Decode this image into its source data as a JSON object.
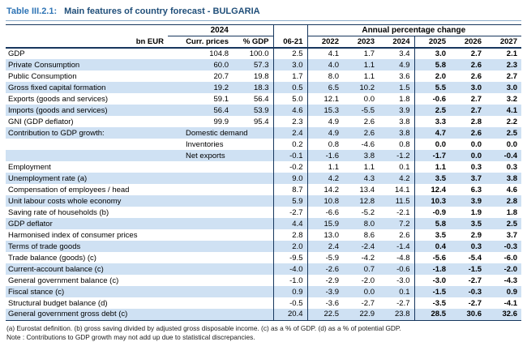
{
  "title": {
    "ref": "Table III.2.1:",
    "text": "Main features of country forecast - BULGARIA"
  },
  "table": {
    "group_headers": {
      "y2024": "2024",
      "annual_change": "Annual percentage change"
    },
    "column_headers": {
      "bn_eur": "bn EUR",
      "curr_prices": "Curr. prices",
      "pct_gdp": "% GDP",
      "avg": "06-21",
      "years": [
        "2022",
        "2023",
        "2024",
        "2025",
        "2026",
        "2027"
      ]
    },
    "rows": [
      {
        "label": "GDP",
        "curr": "104.8",
        "gdp": "100.0",
        "values": [
          "2.5",
          "4.1",
          "1.7",
          "3.4",
          "3.0",
          "2.7",
          "2.1"
        ]
      },
      {
        "label": "Private Consumption",
        "curr": "60.0",
        "gdp": "57.3",
        "values": [
          "3.0",
          "4.0",
          "1.1",
          "4.9",
          "5.8",
          "2.6",
          "2.3"
        ]
      },
      {
        "label": "Public Consumption",
        "curr": "20.7",
        "gdp": "19.8",
        "values": [
          "1.7",
          "8.0",
          "1.1",
          "3.6",
          "2.0",
          "2.6",
          "2.7"
        ]
      },
      {
        "label": "Gross fixed capital formation",
        "curr": "19.2",
        "gdp": "18.3",
        "values": [
          "0.5",
          "6.5",
          "10.2",
          "1.5",
          "5.5",
          "3.0",
          "3.0"
        ]
      },
      {
        "label": "Exports (goods and services)",
        "curr": "59.1",
        "gdp": "56.4",
        "values": [
          "5.0",
          "12.1",
          "0.0",
          "1.8",
          "-0.6",
          "2.7",
          "3.2"
        ]
      },
      {
        "label": "Imports (goods and services)",
        "curr": "56.4",
        "gdp": "53.9",
        "values": [
          "4.6",
          "15.3",
          "-5.5",
          "3.9",
          "2.5",
          "2.7",
          "4.1"
        ]
      },
      {
        "label": "GNI (GDP deflator)",
        "curr": "99.9",
        "gdp": "95.4",
        "values": [
          "2.3",
          "4.9",
          "2.6",
          "3.8",
          "3.3",
          "2.8",
          "2.2"
        ]
      },
      {
        "label": "Contribution to GDP growth:",
        "sub": "Domestic demand",
        "values": [
          "2.4",
          "4.9",
          "2.6",
          "3.8",
          "4.7",
          "2.6",
          "2.5"
        ]
      },
      {
        "label": "",
        "sub": "Inventories",
        "values": [
          "0.2",
          "0.8",
          "-4.6",
          "0.8",
          "0.0",
          "0.0",
          "0.0"
        ]
      },
      {
        "label": "",
        "sub": "Net exports",
        "values": [
          "-0.1",
          "-1.6",
          "3.8",
          "-1.2",
          "-1.7",
          "0.0",
          "-0.4"
        ]
      },
      {
        "label": "Employment",
        "values": [
          "-0.2",
          "1.1",
          "1.1",
          "0.1",
          "1.1",
          "0.3",
          "0.3"
        ]
      },
      {
        "label": "Unemployment rate (a)",
        "values": [
          "9.0",
          "4.2",
          "4.3",
          "4.2",
          "3.5",
          "3.7",
          "3.8"
        ]
      },
      {
        "label": "Compensation of employees / head",
        "values": [
          "8.7",
          "14.2",
          "13.4",
          "14.1",
          "12.4",
          "6.3",
          "4.6"
        ]
      },
      {
        "label": "Unit labour costs whole economy",
        "values": [
          "5.9",
          "10.8",
          "12.8",
          "11.5",
          "10.3",
          "3.9",
          "2.8"
        ]
      },
      {
        "label": "Saving rate of households (b)",
        "values": [
          "-2.7",
          "-6.6",
          "-5.2",
          "-2.1",
          "-0.9",
          "1.9",
          "1.8"
        ]
      },
      {
        "label": "GDP deflator",
        "values": [
          "4.4",
          "15.9",
          "8.0",
          "7.2",
          "5.8",
          "3.5",
          "2.5"
        ]
      },
      {
        "label": "Harmonised index of consumer prices",
        "values": [
          "2.8",
          "13.0",
          "8.6",
          "2.6",
          "3.5",
          "2.9",
          "3.7"
        ]
      },
      {
        "label": "Terms of trade goods",
        "values": [
          "2.0",
          "2.4",
          "-2.4",
          "-1.4",
          "0.4",
          "0.3",
          "-0.3"
        ]
      },
      {
        "label": "Trade balance (goods) (c)",
        "values": [
          "-9.5",
          "-5.9",
          "-4.2",
          "-4.8",
          "-5.6",
          "-5.4",
          "-6.0"
        ]
      },
      {
        "label": "Current-account balance (c)",
        "values": [
          "-4.0",
          "-2.6",
          "0.7",
          "-0.6",
          "-1.8",
          "-1.5",
          "-2.0"
        ]
      },
      {
        "label": "General government balance (c)",
        "values": [
          "-1.0",
          "-2.9",
          "-2.0",
          "-3.0",
          "-3.0",
          "-2.7",
          "-4.3"
        ]
      },
      {
        "label": "Fiscal stance (c)",
        "values": [
          "0.9",
          "-3.9",
          "0.0",
          "0.1",
          "-1.5",
          "-0.3",
          "0.9"
        ]
      },
      {
        "label": "Structural budget balance (d)",
        "values": [
          "-0.5",
          "-3.6",
          "-2.7",
          "-2.7",
          "-3.5",
          "-2.7",
          "-4.1"
        ]
      },
      {
        "label": "General government gross debt (c)",
        "values": [
          "20.4",
          "22.5",
          "22.9",
          "23.8",
          "28.5",
          "30.6",
          "32.6"
        ]
      }
    ],
    "footnotes": [
      "(a) Eurostat definition.  (b) gross saving divided by adjusted gross disposable income.  (c) as a % of GDP.  (d) as a % of potential GDP.",
      "Note : Contributions to GDP growth may not add up due to statistical discrepancies."
    ]
  },
  "colors": {
    "accent_navy": "#17375e",
    "row_shade": "#cfe1f3",
    "title_blue": "#2e74b5",
    "title_dark": "#1f4e79"
  }
}
